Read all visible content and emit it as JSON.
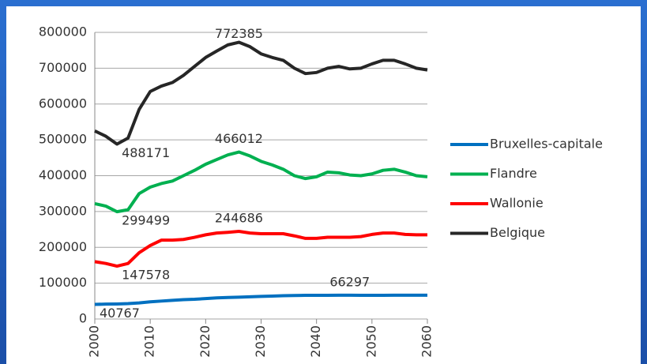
{
  "chart_data": {
    "type": "line",
    "x": [
      2000,
      2002,
      2004,
      2006,
      2008,
      2010,
      2012,
      2014,
      2016,
      2018,
      2020,
      2022,
      2024,
      2026,
      2028,
      2030,
      2032,
      2034,
      2036,
      2038,
      2040,
      2042,
      2044,
      2046,
      2048,
      2050,
      2052,
      2054,
      2056,
      2058,
      2060
    ],
    "series": [
      {
        "name": "Bruxelles-capitale",
        "color": "#0070c0",
        "values": [
          40767,
          41500,
          42000,
          43000,
          45000,
          48000,
          50000,
          52000,
          54000,
          55000,
          57000,
          59000,
          60000,
          61000,
          62000,
          63000,
          64000,
          65000,
          65500,
          66000,
          66000,
          66200,
          66297,
          66297,
          66200,
          66200,
          66200,
          66297,
          66297,
          66297,
          66297
        ],
        "annotations": [
          {
            "x": 2000,
            "value": 40767
          },
          {
            "x": 2046,
            "value": 66297
          }
        ]
      },
      {
        "name": "Flandre",
        "color": "#00b050",
        "values": [
          322000,
          315000,
          299499,
          305000,
          350000,
          368000,
          378000,
          385000,
          400000,
          415000,
          432000,
          445000,
          458000,
          466012,
          455000,
          440000,
          430000,
          418000,
          400000,
          392000,
          397000,
          410000,
          408000,
          402000,
          400000,
          405000,
          415000,
          418000,
          410000,
          400000,
          397000
        ],
        "annotations": [
          {
            "x": 2004,
            "value": 299499
          },
          {
            "x": 2026,
            "value": 466012
          }
        ]
      },
      {
        "name": "Wallonie",
        "color": "#ff0000",
        "values": [
          160000,
          155000,
          147578,
          155000,
          185000,
          205000,
          220000,
          220000,
          222000,
          228000,
          235000,
          240000,
          242000,
          244686,
          240000,
          238000,
          238000,
          238000,
          232000,
          225000,
          225000,
          228000,
          228000,
          228000,
          230000,
          236000,
          240000,
          240000,
          236000,
          235000,
          235000
        ],
        "annotations": [
          {
            "x": 2004,
            "value": 147578
          },
          {
            "x": 2026,
            "value": 244686
          }
        ]
      },
      {
        "name": "Belgique",
        "color": "#262626",
        "values": [
          525000,
          510000,
          488171,
          505000,
          585000,
          635000,
          650000,
          660000,
          680000,
          705000,
          730000,
          748000,
          765000,
          772385,
          760000,
          740000,
          730000,
          722000,
          700000,
          685000,
          688000,
          700000,
          705000,
          698000,
          700000,
          712000,
          722000,
          722000,
          712000,
          700000,
          695000
        ],
        "annotations": [
          {
            "x": 2004,
            "value": 488171
          },
          {
            "x": 2026,
            "value": 772385
          }
        ]
      }
    ],
    "xlim": [
      2000,
      2060
    ],
    "xticks": [
      2000,
      2010,
      2020,
      2030,
      2040,
      2050,
      2060
    ],
    "ylim": [
      0,
      800000
    ],
    "yticks": [
      0,
      100000,
      200000,
      300000,
      400000,
      500000,
      600000,
      700000,
      800000
    ],
    "grid": true,
    "legend": "right"
  }
}
